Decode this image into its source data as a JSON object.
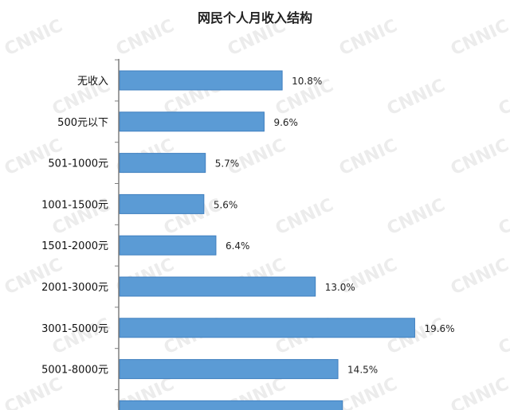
{
  "chart_data": {
    "type": "bar",
    "orientation": "horizontal",
    "title": "网民个人月收入结构",
    "xlabel": "",
    "ylabel": "",
    "xlim": [
      0,
      25
    ],
    "grid": false,
    "legend": "none",
    "watermark": "CNNIC",
    "categories": [
      "无收入",
      "500元以下",
      "501-1000元",
      "1001-1500元",
      "1501-2000元",
      "2001-3000元",
      "3001-5000元",
      "5001-8000元",
      ""
    ],
    "values": [
      10.8,
      9.6,
      5.7,
      5.6,
      6.4,
      13.0,
      19.6,
      14.5,
      14.8
    ],
    "value_labels": [
      "10.8%",
      "9.6%",
      "5.7%",
      "5.6%",
      "6.4%",
      "13.0%",
      "19.6%",
      "14.5%",
      ""
    ],
    "colors": {
      "bar": "#5b9bd5",
      "bar_edge": "#3f7fbf",
      "axis": "#7f7f7f"
    }
  }
}
